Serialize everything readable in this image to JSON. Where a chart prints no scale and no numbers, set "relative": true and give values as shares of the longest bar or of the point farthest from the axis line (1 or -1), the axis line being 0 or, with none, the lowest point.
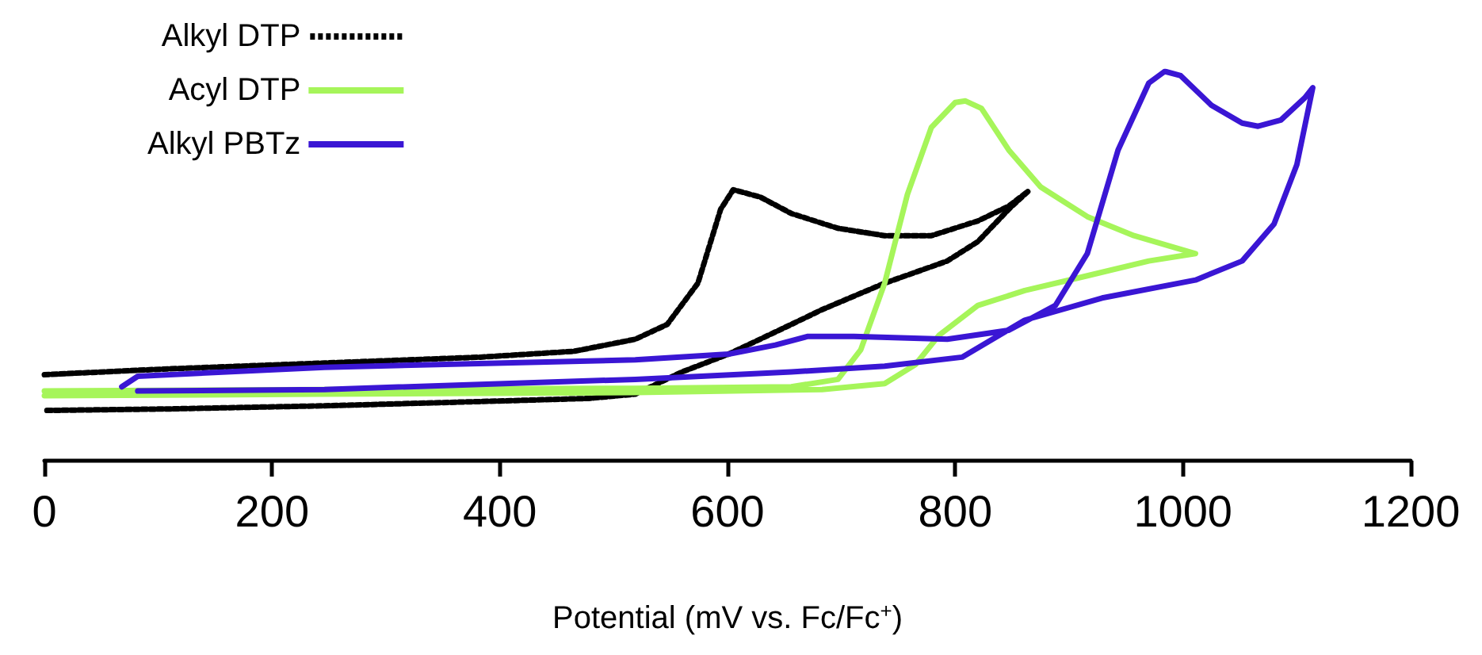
{
  "chart_data": {
    "type": "line",
    "relative": true,
    "xlabel": "Potential (mV vs. Fc/Fc$^{+}$)",
    "xlim": [
      0,
      1200
    ],
    "xticks": [
      0,
      200,
      400,
      600,
      800,
      1000,
      1200
    ],
    "grid": false,
    "legend": "top left",
    "marker": "none",
    "series": [
      {
        "name": "Alkyl DTP",
        "color": "#000000",
        "line_style": "dotted",
        "x": [
          0,
          109,
          246,
          383,
          465,
          519,
          547,
          574,
          594,
          605,
          629,
          656,
          697,
          738,
          779,
          820,
          847,
          864,
          847,
          820,
          793,
          738,
          683,
          656,
          601,
          560,
          519,
          478,
          383,
          246,
          109,
          0
        ],
        "values": [
          0.221,
          0.236,
          0.251,
          0.266,
          0.281,
          0.312,
          0.35,
          0.456,
          0.646,
          0.696,
          0.677,
          0.635,
          0.597,
          0.578,
          0.578,
          0.616,
          0.654,
          0.692,
          0.646,
          0.563,
          0.513,
          0.456,
          0.388,
          0.35,
          0.274,
          0.228,
          0.171,
          0.16,
          0.152,
          0.141,
          0.133,
          0.129
        ]
      },
      {
        "name": "Acyl DTP",
        "color": "#a6f55a",
        "line_style": "solid",
        "x": [
          0,
          246,
          519,
          656,
          697,
          717,
          738,
          758,
          779,
          800,
          809,
          823,
          847,
          875,
          916,
          957,
          1011,
          970,
          916,
          861,
          820,
          786,
          765,
          738,
          683,
          519,
          246,
          0
        ],
        "values": [
          0.179,
          0.183,
          0.186,
          0.19,
          0.209,
          0.285,
          0.456,
          0.684,
          0.856,
          0.92,
          0.924,
          0.905,
          0.798,
          0.703,
          0.627,
          0.578,
          0.532,
          0.513,
          0.475,
          0.437,
          0.399,
          0.323,
          0.247,
          0.198,
          0.183,
          0.175,
          0.171,
          0.167
        ]
      },
      {
        "name": "Alkyl PBTz",
        "color": "#3a16d4",
        "line_style": "solid",
        "x": [
          68,
          82,
          246,
          519,
          601,
          642,
          670,
          711,
          793,
          847,
          888,
          916,
          943,
          970,
          984,
          998,
          1025,
          1052,
          1066,
          1086,
          1107,
          1114,
          1100,
          1080,
          1052,
          1011,
          929,
          861,
          806,
          738,
          656,
          519,
          246,
          82
        ],
        "values": [
          0.19,
          0.217,
          0.24,
          0.259,
          0.274,
          0.297,
          0.319,
          0.319,
          0.312,
          0.335,
          0.399,
          0.532,
          0.798,
          0.97,
          1,
          0.989,
          0.913,
          0.867,
          0.859,
          0.875,
          0.932,
          0.958,
          0.76,
          0.608,
          0.513,
          0.464,
          0.418,
          0.361,
          0.266,
          0.243,
          0.228,
          0.209,
          0.183,
          0.179
        ]
      }
    ]
  }
}
